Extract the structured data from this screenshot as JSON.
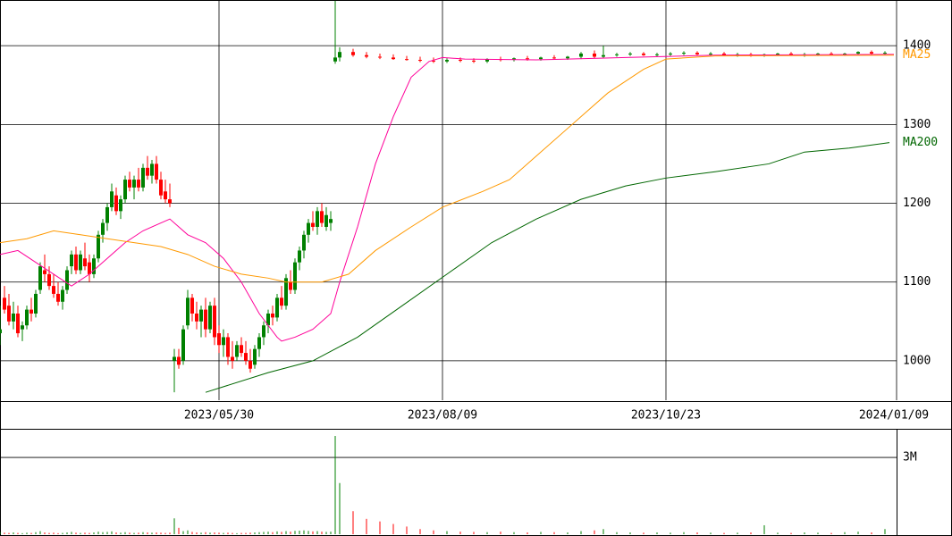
{
  "chart_data": {
    "type": "candlestick",
    "x": [
      0,
      1,
      2,
      3,
      4,
      5,
      6,
      7,
      8,
      9,
      10,
      11,
      12,
      13,
      14,
      15,
      16,
      17,
      18,
      19,
      20,
      21,
      22,
      23,
      24,
      25,
      26,
      27,
      28,
      29,
      30,
      31,
      32,
      33,
      34,
      35,
      36,
      37,
      38,
      39,
      40,
      41,
      42,
      43,
      44,
      45,
      46,
      47,
      48,
      49,
      50,
      51,
      52,
      53,
      54,
      55,
      56,
      57,
      58,
      59,
      60,
      61,
      62,
      63,
      64,
      65,
      66,
      67,
      68,
      69,
      70,
      71,
      72,
      73,
      74,
      75,
      76,
      79,
      82,
      85,
      88,
      91,
      94,
      97,
      100,
      103,
      106,
      109,
      112,
      115,
      118,
      121,
      124,
      127,
      130,
      133,
      135,
      138,
      141,
      144,
      147,
      150,
      153,
      156,
      159,
      162,
      165,
      168,
      171,
      174,
      177,
      180,
      183,
      186,
      189,
      192,
      195,
      198
    ],
    "open": [
      1035,
      1080,
      1070,
      1050,
      1060,
      1040,
      1045,
      1065,
      1060,
      1090,
      1115,
      1110,
      1095,
      1085,
      1075,
      1090,
      1120,
      1135,
      1115,
      1130,
      1125,
      1110,
      1130,
      1160,
      1175,
      1195,
      1210,
      1190,
      1205,
      1230,
      1220,
      1230,
      1220,
      1245,
      1235,
      1250,
      1230,
      1215,
      1205,
      1000,
      1005,
      1000,
      1045,
      1080,
      1060,
      1050,
      1065,
      1040,
      1070,
      1035,
      1020,
      1030,
      1005,
      1005,
      1020,
      1010,
      1000,
      995,
      1015,
      1030,
      1045,
      1060,
      1055,
      1080,
      1070,
      1100,
      1090,
      1125,
      1140,
      1160,
      1175,
      1170,
      1190,
      1170,
      1175,
      1380,
      1385,
      1392,
      1388,
      1386,
      1385,
      1383,
      1382,
      1381,
      1380,
      1382,
      1381,
      1380,
      1383,
      1382,
      1384,
      1383,
      1385,
      1384,
      1386,
      1390,
      1386,
      1388,
      1389,
      1390,
      1388,
      1389,
      1390,
      1391,
      1389,
      1390,
      1388,
      1389,
      1388,
      1389,
      1390,
      1388,
      1389,
      1390,
      1389,
      1390,
      1392,
      1390
    ],
    "high": [
      1070,
      1095,
      1085,
      1075,
      1070,
      1050,
      1070,
      1080,
      1090,
      1125,
      1135,
      1120,
      1110,
      1100,
      1095,
      1120,
      1140,
      1145,
      1140,
      1150,
      1135,
      1135,
      1165,
      1180,
      1200,
      1225,
      1220,
      1210,
      1235,
      1240,
      1235,
      1245,
      1250,
      1260,
      1255,
      1260,
      1240,
      1230,
      1225,
      1015,
      1015,
      1045,
      1090,
      1085,
      1075,
      1070,
      1080,
      1075,
      1080,
      1045,
      1040,
      1035,
      1025,
      1025,
      1030,
      1025,
      1015,
      1020,
      1035,
      1050,
      1065,
      1070,
      1085,
      1095,
      1110,
      1115,
      1130,
      1145,
      1165,
      1180,
      1190,
      1195,
      1200,
      1195,
      1190,
      1457,
      1398,
      1396,
      1392,
      1390,
      1389,
      1387,
      1386,
      1385,
      1384,
      1385,
      1384,
      1384,
      1386,
      1385,
      1387,
      1386,
      1388,
      1387,
      1392,
      1394,
      1400,
      1391,
      1392,
      1392,
      1391,
      1392,
      1393,
      1393,
      1392,
      1392,
      1391,
      1391,
      1390,
      1391,
      1392,
      1391,
      1391,
      1392,
      1391,
      1393,
      1394,
      1393
    ],
    "low": [
      1020,
      1060,
      1045,
      1040,
      1030,
      1025,
      1040,
      1050,
      1055,
      1085,
      1100,
      1090,
      1080,
      1070,
      1065,
      1085,
      1110,
      1110,
      1110,
      1115,
      1100,
      1105,
      1125,
      1150,
      1165,
      1190,
      1185,
      1180,
      1200,
      1215,
      1205,
      1215,
      1215,
      1230,
      1225,
      1225,
      1205,
      1200,
      1195,
      960,
      990,
      995,
      1040,
      1050,
      1040,
      1030,
      1030,
      1035,
      1020,
      1010,
      1005,
      995,
      990,
      1000,
      1005,
      995,
      985,
      990,
      1005,
      1020,
      1035,
      1045,
      1050,
      1065,
      1065,
      1085,
      1085,
      1115,
      1130,
      1150,
      1165,
      1160,
      1170,
      1165,
      1165,
      1377,
      1380,
      1386,
      1384,
      1383,
      1382,
      1381,
      1379,
      1378,
      1378,
      1379,
      1378,
      1378,
      1380,
      1380,
      1381,
      1381,
      1382,
      1382,
      1383,
      1384,
      1384,
      1386,
      1387,
      1387,
      1386,
      1387,
      1388,
      1388,
      1387,
      1387,
      1386,
      1386,
      1386,
      1387,
      1387,
      1386,
      1387,
      1388,
      1387,
      1388,
      1389,
      1388
    ],
    "close": [
      1040,
      1065,
      1050,
      1060,
      1035,
      1045,
      1065,
      1060,
      1085,
      1120,
      1110,
      1095,
      1085,
      1075,
      1090,
      1115,
      1135,
      1115,
      1135,
      1120,
      1110,
      1130,
      1160,
      1175,
      1195,
      1215,
      1190,
      1205,
      1230,
      1220,
      1230,
      1220,
      1245,
      1235,
      1250,
      1230,
      1210,
      1205,
      1200,
      1005,
      995,
      1040,
      1080,
      1060,
      1050,
      1065,
      1040,
      1070,
      1030,
      1020,
      1030,
      1005,
      1000,
      1020,
      1010,
      1000,
      990,
      1015,
      1030,
      1045,
      1060,
      1055,
      1080,
      1070,
      1105,
      1090,
      1125,
      1140,
      1160,
      1175,
      1170,
      1190,
      1175,
      1185,
      1180,
      1385,
      1392,
      1388,
      1386,
      1385,
      1383,
      1382,
      1381,
      1380,
      1382,
      1381,
      1380,
      1383,
      1382,
      1384,
      1383,
      1385,
      1384,
      1386,
      1390,
      1386,
      1388,
      1389,
      1390,
      1388,
      1389,
      1390,
      1391,
      1389,
      1390,
      1388,
      1389,
      1388,
      1389,
      1390,
      1388,
      1389,
      1390,
      1389,
      1390,
      1392,
      1390,
      1391
    ],
    "volume": [
      0.08,
      0.06,
      0.05,
      0.07,
      0.05,
      0.04,
      0.06,
      0.05,
      0.08,
      0.12,
      0.07,
      0.05,
      0.06,
      0.04,
      0.05,
      0.07,
      0.09,
      0.06,
      0.05,
      0.06,
      0.05,
      0.07,
      0.1,
      0.08,
      0.09,
      0.11,
      0.07,
      0.06,
      0.08,
      0.06,
      0.05,
      0.06,
      0.08,
      0.07,
      0.06,
      0.07,
      0.06,
      0.05,
      0.06,
      0.62,
      0.25,
      0.12,
      0.15,
      0.09,
      0.07,
      0.06,
      0.08,
      0.06,
      0.07,
      0.06,
      0.05,
      0.06,
      0.05,
      0.04,
      0.05,
      0.05,
      0.06,
      0.07,
      0.08,
      0.09,
      0.1,
      0.08,
      0.11,
      0.09,
      0.12,
      0.1,
      0.13,
      0.14,
      0.15,
      0.13,
      0.11,
      0.12,
      0.1,
      0.09,
      0.1,
      3.84,
      2.0,
      0.9,
      0.6,
      0.5,
      0.4,
      0.3,
      0.2,
      0.15,
      0.12,
      0.1,
      0.09,
      0.08,
      0.1,
      0.08,
      0.07,
      0.09,
      0.08,
      0.07,
      0.12,
      0.15,
      0.2,
      0.08,
      0.07,
      0.06,
      0.07,
      0.06,
      0.08,
      0.07,
      0.06,
      0.05,
      0.06,
      0.07,
      0.35,
      0.06,
      0.05,
      0.07,
      0.06,
      0.05,
      0.08,
      0.1,
      0.07,
      0.2
    ],
    "up_color": "#008000",
    "down_color": "#ff0000",
    "xlim": [
      0,
      200.6
    ],
    "ylim": [
      950,
      1458
    ],
    "xticks": [
      {
        "value": 49,
        "label": "2023/05/30"
      },
      {
        "value": 99,
        "label": "2023/08/09"
      },
      {
        "value": 149,
        "label": "2023/10/23"
      },
      {
        "value": 200.6,
        "label": "2024/01/09"
      }
    ],
    "yticks": [
      1000,
      1100,
      1200,
      1300,
      1400
    ],
    "volume_ylim": [
      0,
      4.12
    ],
    "volume_yticks": [
      {
        "value": 3,
        "label": "3M"
      }
    ],
    "grid": true,
    "series": [
      {
        "color": "#ff0099",
        "x": [
          0,
          4,
          8,
          12,
          16,
          20,
          24,
          28,
          32,
          36,
          38,
          42,
          46,
          50,
          54,
          58,
          62,
          63,
          66,
          70,
          74,
          76,
          80,
          84,
          88,
          92,
          96,
          99,
          104,
          120,
          140,
          160,
          200
        ],
        "values": [
          1135,
          1140,
          1125,
          1110,
          1095,
          1110,
          1130,
          1150,
          1165,
          1175,
          1180,
          1160,
          1150,
          1130,
          1100,
          1060,
          1030,
          1025,
          1030,
          1040,
          1060,
          1100,
          1170,
          1250,
          1310,
          1360,
          1380,
          1385,
          1383,
          1382,
          1385,
          1388,
          1389
        ]
      },
      {
        "name": "MA25",
        "color": "#ff9900",
        "x": [
          0,
          6,
          12,
          18,
          24,
          30,
          36,
          42,
          48,
          54,
          60,
          64,
          72,
          78,
          84,
          92,
          99,
          108,
          114,
          120,
          128,
          136,
          144,
          149,
          160,
          200
        ],
        "values": [
          1150,
          1155,
          1165,
          1160,
          1155,
          1150,
          1145,
          1135,
          1120,
          1110,
          1105,
          1100,
          1100,
          1110,
          1140,
          1170,
          1195,
          1215,
          1230,
          1260,
          1300,
          1340,
          1370,
          1383,
          1387,
          1388
        ]
      },
      {
        "name": "MA200",
        "color": "#006600",
        "x": [
          46,
          60,
          70,
          80,
          90,
          100,
          110,
          120,
          130,
          140,
          149,
          160,
          172,
          180,
          190,
          199
        ],
        "values": [
          960,
          985,
          1000,
          1030,
          1070,
          1110,
          1150,
          1180,
          1205,
          1222,
          1232,
          1240,
          1250,
          1265,
          1270,
          1277
        ]
      }
    ]
  }
}
